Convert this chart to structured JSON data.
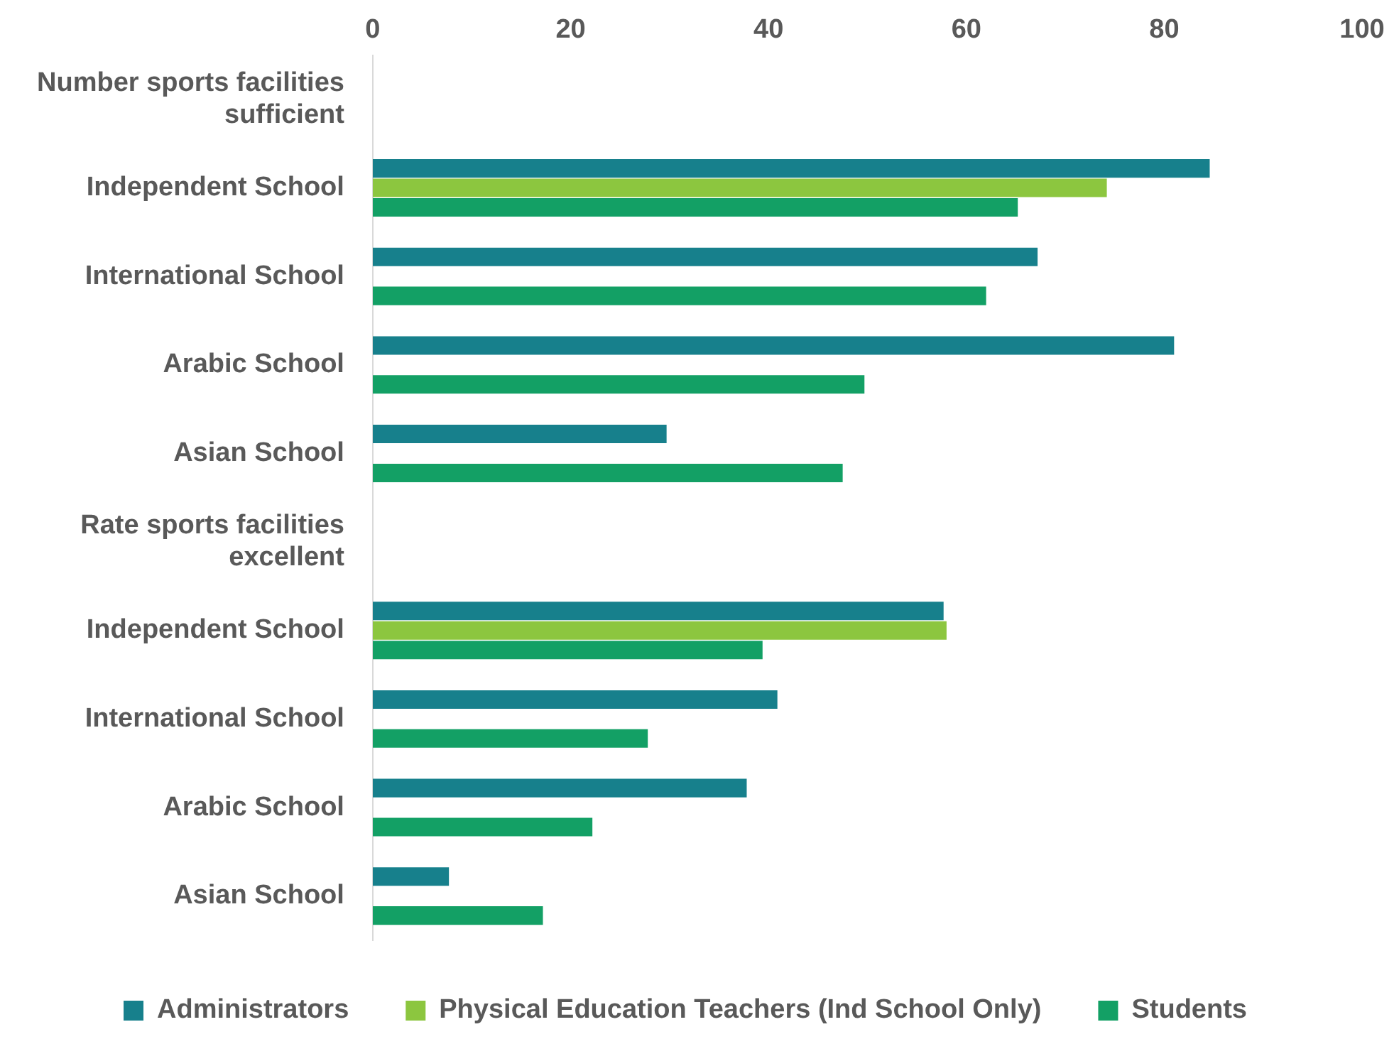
{
  "chart_data": {
    "type": "bar",
    "orientation": "horizontal",
    "categories": [
      "Number sports facilities sufficient",
      "Independent School",
      "International School",
      "Arabic School",
      "Asian School",
      "Rate sports facilities excellent",
      "Independent School",
      "International School",
      "Arabic School",
      "Asian School"
    ],
    "series": [
      {
        "name": "Administrators",
        "color": "#17808c",
        "values": [
          null,
          84.6,
          67.2,
          81,
          29.7,
          null,
          57.7,
          40.9,
          37.8,
          7.7
        ]
      },
      {
        "name": "Physical Education Teachers (Ind School Only)",
        "color": "#8cc63f",
        "values": [
          null,
          74.2,
          null,
          null,
          null,
          null,
          58,
          null,
          null,
          null
        ]
      },
      {
        "name": "Students",
        "color": "#13a065",
        "values": [
          null,
          65.2,
          62,
          49.7,
          47.5,
          null,
          39.4,
          27.8,
          22.2,
          17.2
        ]
      }
    ],
    "xlim": [
      0,
      100
    ],
    "xticks": [
      0,
      20,
      40,
      60,
      80,
      100
    ],
    "grid": false,
    "legend": "bottom"
  }
}
